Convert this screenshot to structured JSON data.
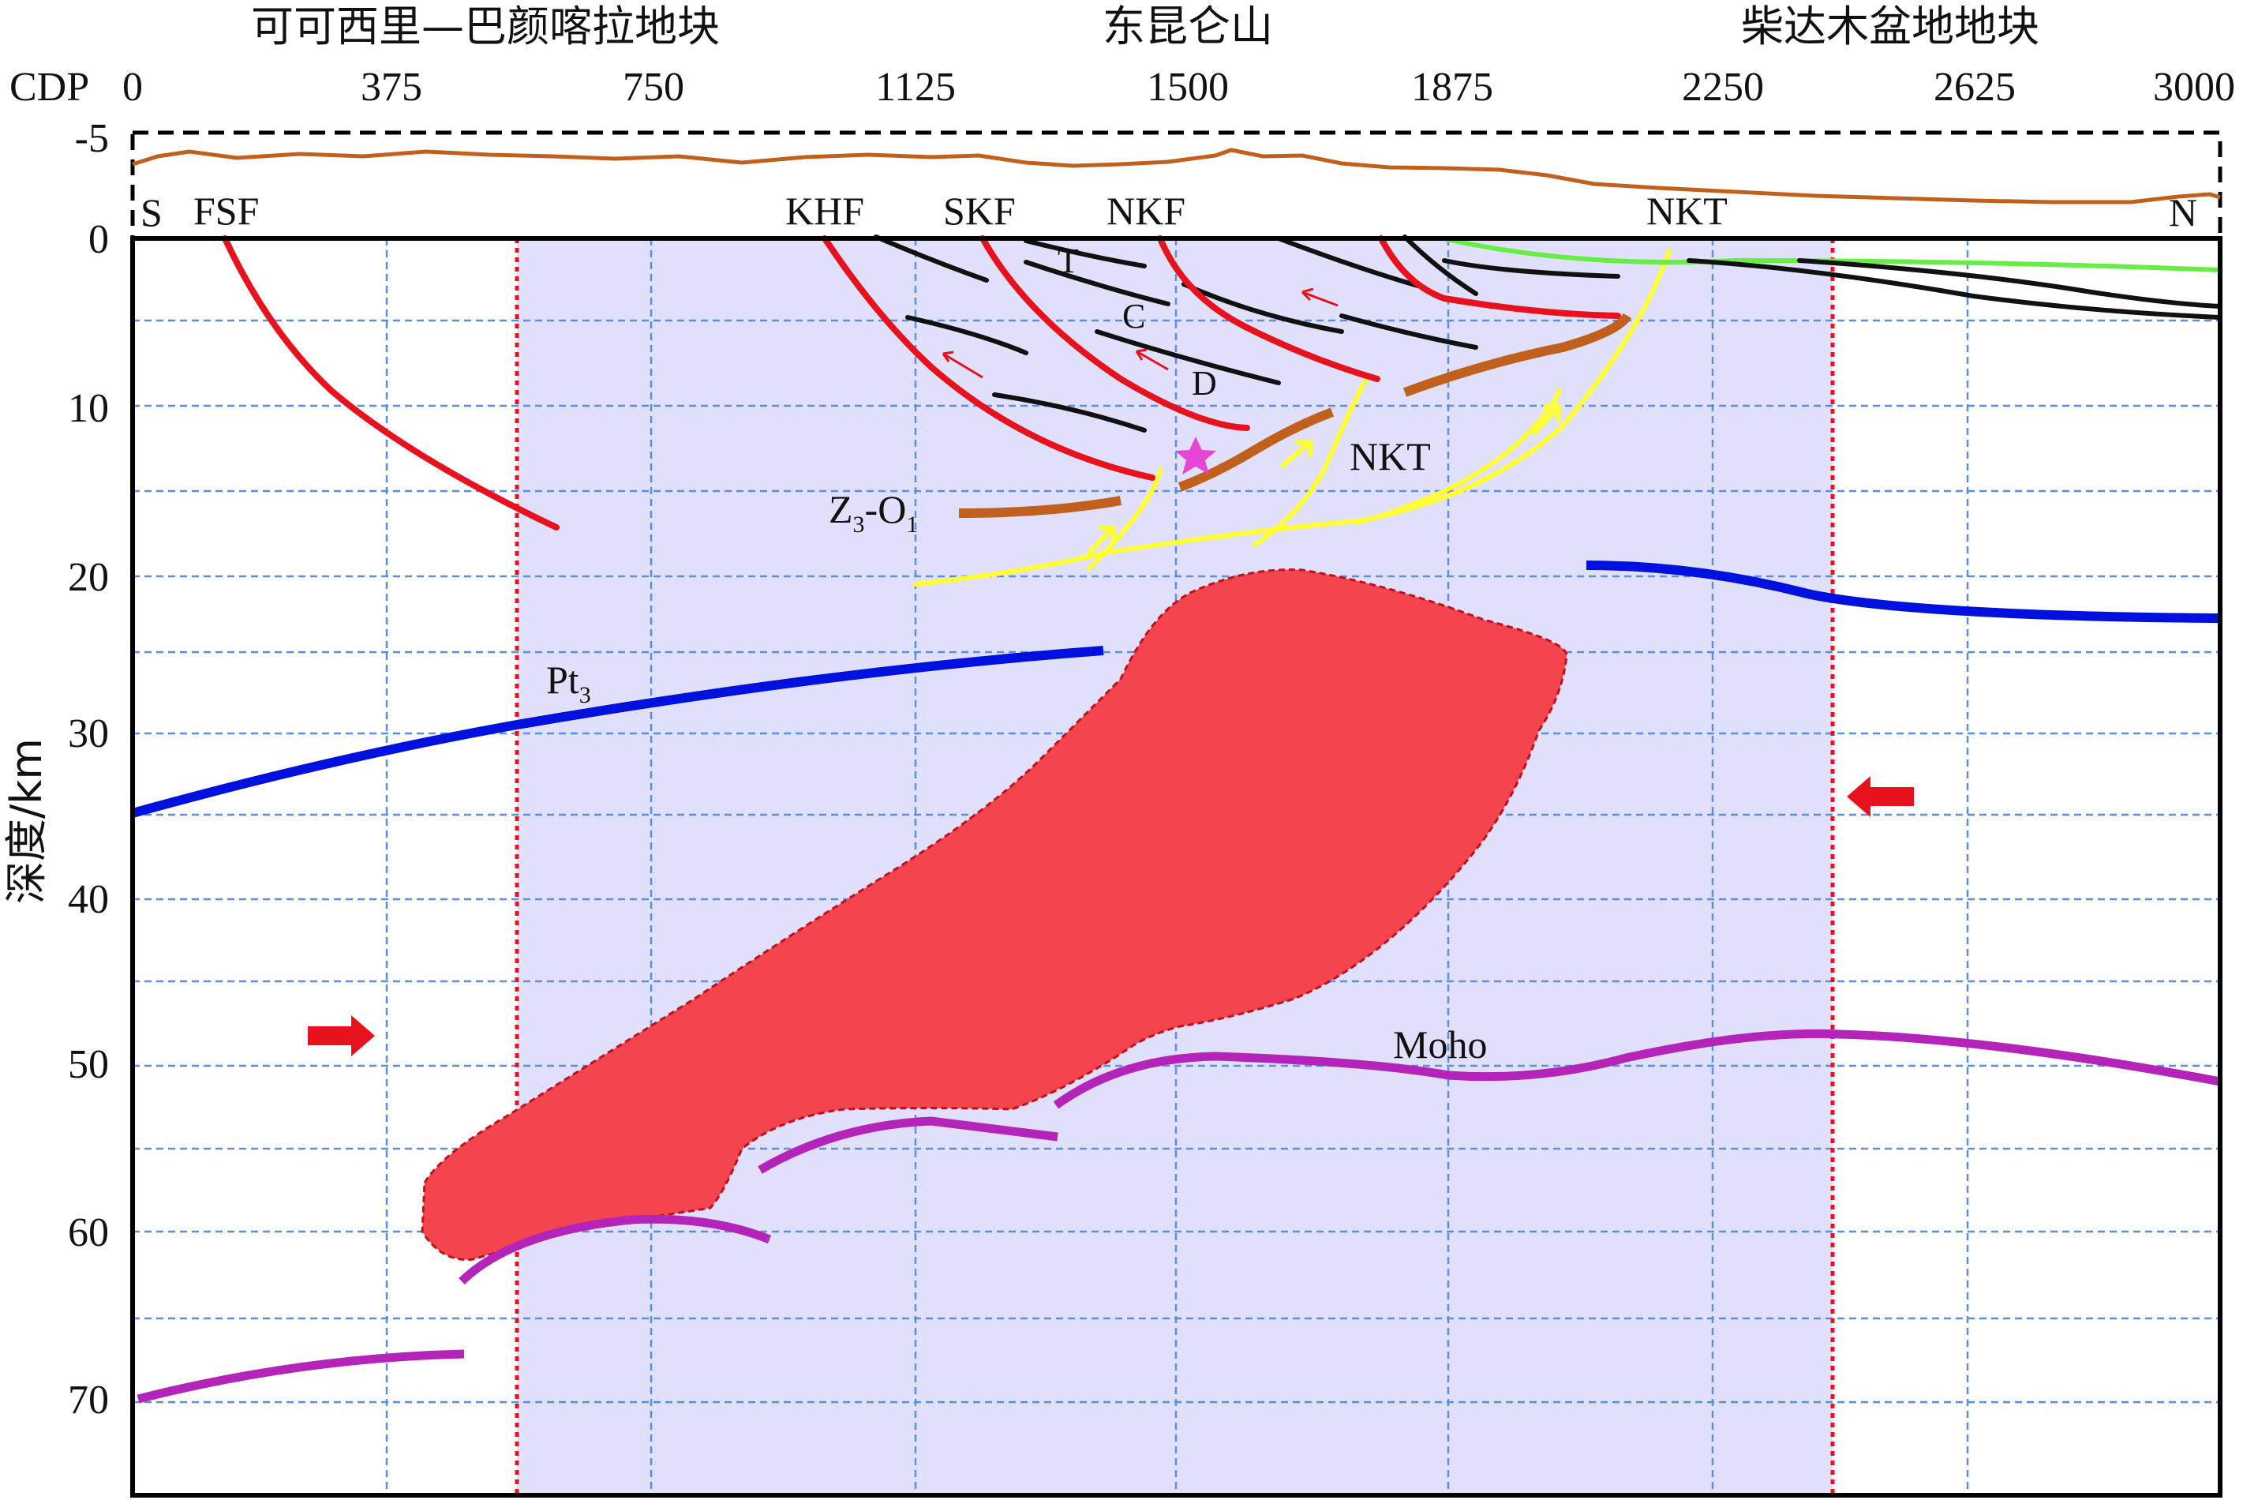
{
  "regions": {
    "left": "可可西里—巴颜喀拉地块",
    "middle": "东昆仑山",
    "right": "柴达木盆地地块"
  },
  "cdp_axis": {
    "label": "CDP",
    "ticks": [
      "0",
      "375",
      "750",
      "1125",
      "1500",
      "1875",
      "2250",
      "2625",
      "3000"
    ]
  },
  "depth_axis": {
    "label": "深度/km",
    "top_tick": "-5",
    "ticks": [
      "0",
      "10",
      "20",
      "30",
      "40",
      "50",
      "60",
      "70"
    ]
  },
  "orientation": {
    "south": "S",
    "north": "N"
  },
  "faults": {
    "fsf": "FSF",
    "khf": "KHF",
    "skf": "SKF",
    "nkf": "NKF",
    "nkt_top": "NKT",
    "nkt_mid": "NKT"
  },
  "strata": {
    "t": "T",
    "c": "C",
    "d": "D"
  },
  "interfaces": {
    "z3o1_main": "Z",
    "z3o1_sub1": "3",
    "z3o1_mid": "-O",
    "z3o1_sub2": "1",
    "pt3_main": "Pt",
    "pt3_sub": "3",
    "moho": "Moho"
  },
  "colors": {
    "faults": "#e8111e",
    "strata": "#111111",
    "z3o1": "#c0601c",
    "nkt_thrust": "#ffff33",
    "pt3": "#0011dd",
    "moho": "#b424b8",
    "magma_body": "#f4444e",
    "sediment_top": "#66ee44",
    "topography": "#c0601c",
    "shaded_zone": "#e1e0fa",
    "grid": "#5a8ee0",
    "star": "#e646d6"
  }
}
